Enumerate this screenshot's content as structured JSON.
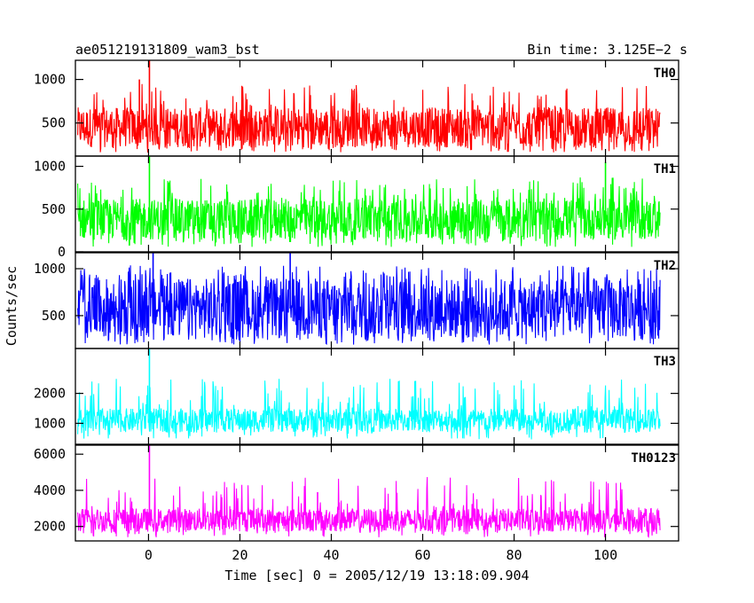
{
  "header": {
    "title": "ae051219131809_wam3_bst",
    "bin_time": "Bin time: 3.125E−2 s"
  },
  "chart_data": {
    "type": "line",
    "title": "ae051219131809_wam3_bst",
    "subtitle": "Bin time: 3.125E−2 s",
    "xlabel": "Time [sec] 0 = 2005/12/19 13:18:09.904",
    "ylabel": "Counts/sec",
    "xlim": [
      -16,
      116
    ],
    "x_data_range": [
      -15.5,
      112
    ],
    "x_ticks": [
      0,
      20,
      40,
      60,
      80,
      100
    ],
    "x_tick_labels": [
      "0",
      "20",
      "40",
      "60",
      "80",
      "100"
    ],
    "legend": "none",
    "grid": false,
    "panels": [
      {
        "name": "TH0",
        "color": "#ff0000",
        "ylim": [
          120,
          1220
        ],
        "y_ticks": [
          500,
          1000
        ],
        "y_tick_labels": [
          "500",
          "1000"
        ],
        "typical_range": [
          220,
          680
        ],
        "spikes": [
          {
            "x": 0.2,
            "y": 1220
          },
          {
            "x": -2.0,
            "y": 1000
          }
        ]
      },
      {
        "name": "TH1",
        "color": "#00ff00",
        "ylim": [
          0,
          1120
        ],
        "y_ticks": [
          0,
          500,
          1000
        ],
        "y_tick_labels": [
          "0",
          "500",
          "1000"
        ],
        "typical_range": [
          140,
          620
        ],
        "spikes": [
          {
            "x": 0.2,
            "y": 1120
          },
          {
            "x": 100.0,
            "y": 1050
          }
        ]
      },
      {
        "name": "TH2",
        "color": "#0000ff",
        "ylim": [
          150,
          1170
        ],
        "y_ticks": [
          500,
          1000
        ],
        "y_tick_labels": [
          "500",
          "1000"
        ],
        "typical_range": [
          250,
          900
        ],
        "spikes": [
          {
            "x": 1.0,
            "y": 1170
          },
          {
            "x": 31.0,
            "y": 1170
          }
        ]
      },
      {
        "name": "TH3",
        "color": "#00ffff",
        "ylim": [
          300,
          3500
        ],
        "y_ticks": [
          1000,
          2000
        ],
        "y_tick_labels": [
          "1000",
          "2000"
        ],
        "typical_range": [
          700,
          1500
        ],
        "spikes": [
          {
            "x": 0.2,
            "y": 3500
          }
        ]
      },
      {
        "name": "TH0123",
        "color": "#ff00ff",
        "ylim": [
          1200,
          6500
        ],
        "y_ticks": [
          2000,
          4000,
          6000
        ],
        "y_tick_labels": [
          "2000",
          "4000",
          "6000"
        ],
        "typical_range": [
          1700,
          3000
        ],
        "spikes": [
          {
            "x": 0.2,
            "y": 6500
          },
          {
            "x": 37.0,
            "y": 3900
          }
        ]
      }
    ]
  }
}
